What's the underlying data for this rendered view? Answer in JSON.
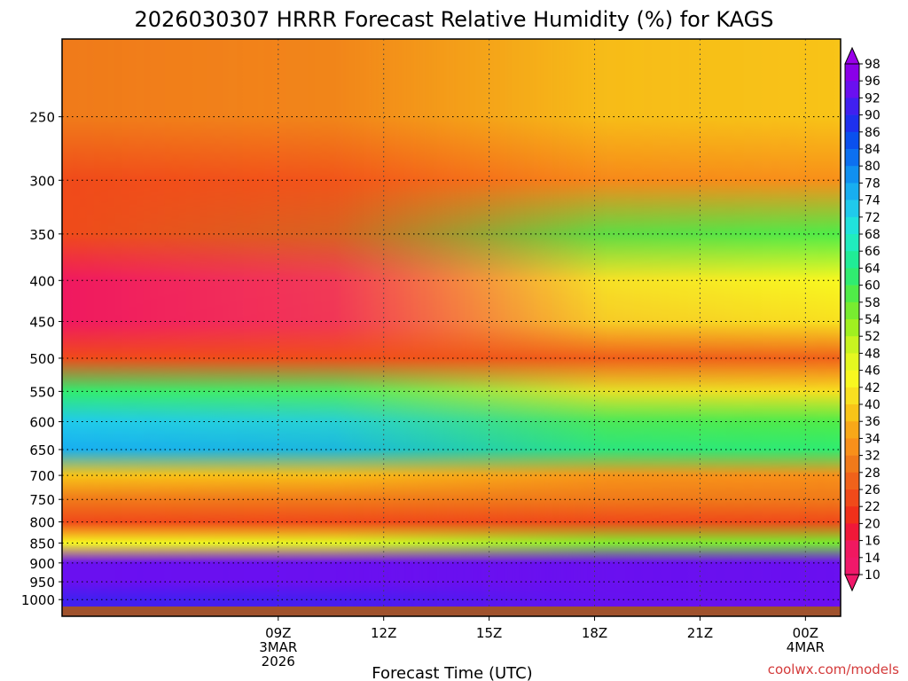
{
  "chart_data": {
    "type": "heatmap",
    "title": "2026030307 HRRR Forecast Relative Humidity (%) for KAGS",
    "xlabel": "Forecast Time (UTC)",
    "ylabel": "",
    "y_scale": "log",
    "ylim": [
      1020,
      200
    ],
    "xlim": [
      "03Z 3MAR",
      "01Z 4MAR"
    ],
    "y_ticks": [
      250,
      300,
      350,
      400,
      450,
      500,
      550,
      600,
      650,
      700,
      750,
      800,
      850,
      900,
      950,
      1000
    ],
    "x_ticks": [
      {
        "time": "09Z",
        "line2": "3MAR",
        "line3": "2026"
      },
      {
        "time": "12Z",
        "line2": "",
        "line3": ""
      },
      {
        "time": "15Z",
        "line2": "",
        "line3": ""
      },
      {
        "time": "18Z",
        "line2": "",
        "line3": ""
      },
      {
        "time": "21Z",
        "line2": "",
        "line3": ""
      },
      {
        "time": "00Z",
        "line2": "4MAR",
        "line3": ""
      }
    ],
    "colorbar": {
      "levels": [
        98,
        96,
        92,
        90,
        86,
        84,
        80,
        78,
        74,
        72,
        68,
        66,
        64,
        60,
        58,
        54,
        52,
        48,
        46,
        42,
        40,
        36,
        34,
        32,
        28,
        26,
        22,
        20,
        16,
        14,
        10
      ],
      "colors": [
        "#8a00e8",
        "#6a10f0",
        "#4020f0",
        "#1e30ee",
        "#0a50ee",
        "#0c70f0",
        "#1090f0",
        "#18aef0",
        "#20caec",
        "#20e2dc",
        "#20ecbe",
        "#20ec96",
        "#30ec70",
        "#50ec48",
        "#78ec30",
        "#a0f020",
        "#c8f420",
        "#e4f820",
        "#f8f820",
        "#f8e020",
        "#f8c418",
        "#f8a818",
        "#f8901a",
        "#f07a1a",
        "#f0621a",
        "#f04a1a",
        "#f0301a",
        "#f01838",
        "#f01860",
        "#f0186a"
      ]
    },
    "rh_profile_hPa": [
      250,
      300,
      350,
      400,
      450,
      500,
      550,
      600,
      650,
      700,
      750,
      800,
      850,
      900,
      950,
      1000
    ],
    "rh_profile_early": [
      30,
      22,
      22,
      14,
      14,
      24,
      60,
      72,
      76,
      36,
      30,
      24,
      45,
      94,
      94,
      90
    ],
    "rh_profile_late": [
      36,
      32,
      58,
      44,
      40,
      26,
      40,
      58,
      60,
      32,
      28,
      22,
      54,
      92,
      94,
      92
    ],
    "grid": true
  },
  "credit": "coolwx.com/models"
}
